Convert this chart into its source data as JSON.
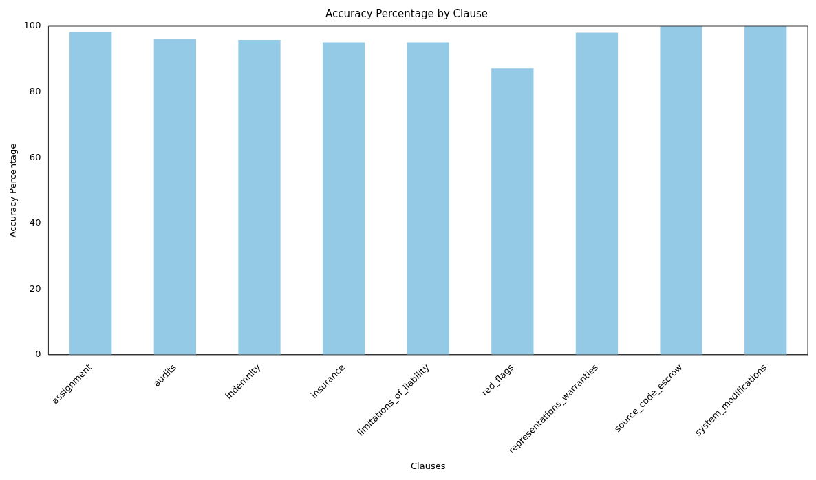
{
  "chart_data": {
    "type": "bar",
    "title": "Accuracy Percentage by Clause",
    "xlabel": "Clauses",
    "ylabel": "Accuracy Percentage",
    "categories": [
      "assignment",
      "audits",
      "indemnity",
      "insurance",
      "limitations_of_liability",
      "red_flags",
      "representations_warranties",
      "source_code_escrow",
      "system_modifications"
    ],
    "values": [
      98.2,
      96.2,
      95.8,
      95.1,
      95.1,
      87.2,
      98.0,
      100,
      100
    ],
    "color": "#95cae7",
    "ylim": [
      0,
      100
    ],
    "yticks": [
      0,
      20,
      40,
      60,
      80,
      100
    ],
    "grid": false,
    "legend": false
  }
}
